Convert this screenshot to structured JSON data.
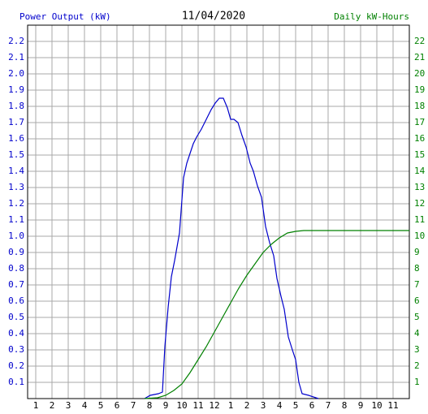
{
  "chart_data": {
    "type": "line",
    "title": "11/04/2020",
    "ylabel": "Power Output (kW)",
    "y2label": "Daily kW-Hours",
    "ylabel_color": "#0000cc",
    "y2label_color": "#008000",
    "grid": true,
    "xlim": [
      0.5,
      24
    ],
    "xticks": [
      1,
      2,
      3,
      4,
      5,
      6,
      7,
      8,
      9,
      10,
      11,
      12,
      {
        "value": 13,
        "label": "1"
      },
      {
        "value": 14,
        "label": "2"
      },
      {
        "value": 15,
        "label": "3"
      },
      {
        "value": 16,
        "label": "4"
      },
      {
        "value": 17,
        "label": "5"
      },
      {
        "value": 18,
        "label": "6"
      },
      {
        "value": 19,
        "label": "7"
      },
      {
        "value": 20,
        "label": "8"
      },
      {
        "value": 21,
        "label": "9"
      },
      {
        "value": 22,
        "label": "10"
      },
      {
        "value": 23,
        "label": "11"
      }
    ],
    "ylim": [
      0,
      2.3
    ],
    "yticks": [
      0.1,
      0.2,
      0.3,
      0.4,
      0.5,
      0.6,
      0.7,
      0.8,
      0.9,
      {
        "value": 1,
        "label": "1.0"
      },
      1.1,
      1.2,
      1.3,
      1.4,
      1.5,
      1.6,
      1.7,
      1.8,
      1.9,
      {
        "value": 2,
        "label": "2.0"
      },
      2.1,
      2.2
    ],
    "y2lim": [
      0,
      23
    ],
    "y2ticks": [
      1,
      2,
      3,
      4,
      5,
      6,
      7,
      8,
      9,
      10,
      11,
      12,
      13,
      14,
      15,
      16,
      17,
      18,
      19,
      20,
      21,
      22
    ],
    "series": [
      {
        "name": "Power Output (kW)",
        "color": "#0000cc",
        "x": [
          7.7,
          8.05,
          8.55,
          8.8,
          8.95,
          9.15,
          9.35,
          9.55,
          9.85,
          10.1,
          10.3,
          10.5,
          10.7,
          10.9,
          11.2,
          11.5,
          11.8,
          12.05,
          12.3,
          12.55,
          12.8,
          13.0,
          13.2,
          13.45,
          13.7,
          13.95,
          14.2,
          14.4,
          14.65,
          14.9,
          15.15,
          15.4,
          15.65,
          15.85,
          16.1,
          16.3,
          16.55,
          16.8,
          17.0,
          17.2,
          17.4,
          17.8,
          18.4
        ],
        "values": [
          0,
          0.02,
          0.03,
          0.04,
          0.32,
          0.56,
          0.75,
          0.85,
          1.02,
          1.36,
          1.45,
          1.51,
          1.57,
          1.61,
          1.66,
          1.72,
          1.78,
          1.82,
          1.85,
          1.85,
          1.79,
          1.72,
          1.72,
          1.7,
          1.62,
          1.55,
          1.45,
          1.4,
          1.31,
          1.24,
          1.06,
          0.96,
          0.88,
          0.74,
          0.63,
          0.55,
          0.38,
          0.3,
          0.24,
          0.1,
          0.03,
          0.02,
          0
        ]
      },
      {
        "name": "Daily kW-Hours",
        "color": "#008000",
        "axis": "y2",
        "x": [
          7.7,
          8.5,
          9.0,
          9.5,
          10.0,
          10.5,
          11.0,
          11.5,
          12.0,
          12.5,
          13.0,
          13.5,
          14.0,
          14.5,
          15.0,
          15.5,
          16.0,
          16.5,
          17.0,
          17.5,
          24
        ],
        "values": [
          0,
          0.05,
          0.2,
          0.5,
          0.9,
          1.6,
          2.4,
          3.2,
          4.1,
          5.0,
          5.9,
          6.8,
          7.6,
          8.3,
          9.0,
          9.5,
          9.9,
          10.2,
          10.3,
          10.35,
          10.35
        ]
      }
    ]
  }
}
